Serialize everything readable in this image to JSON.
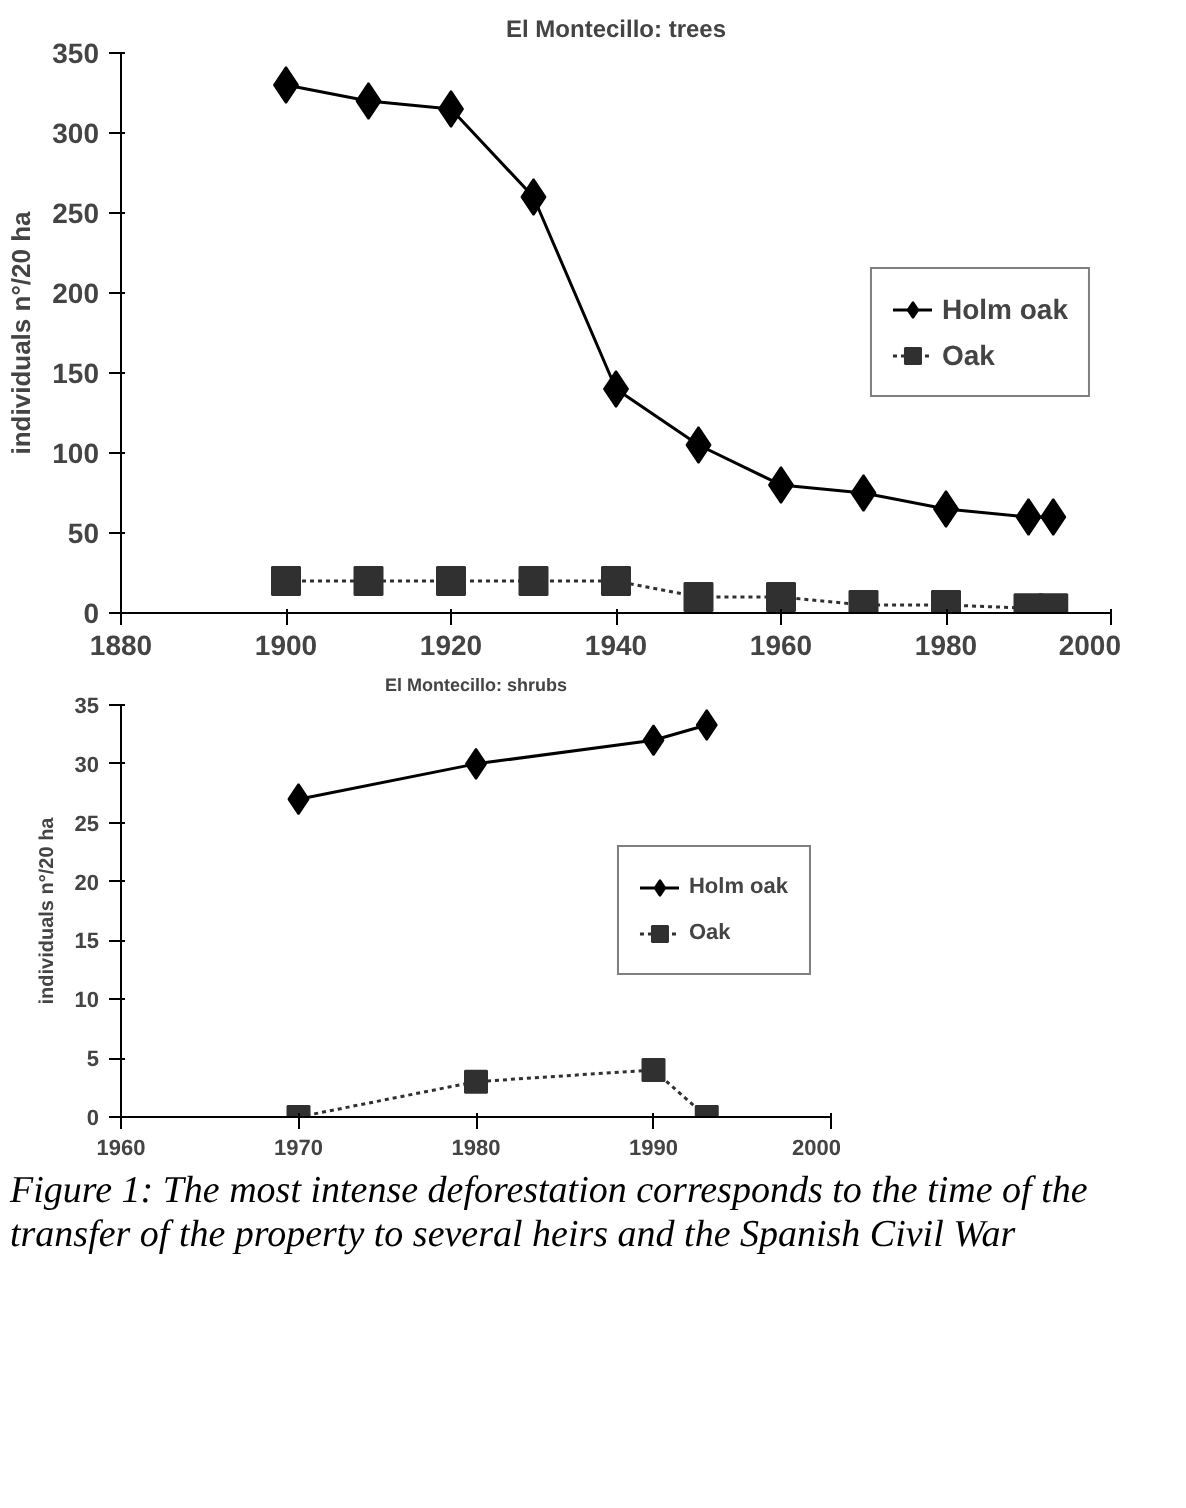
{
  "chart_data": [
    {
      "type": "line",
      "title": "El Montecillo: trees",
      "ylabel": "individuals n°/20 ha",
      "x": [
        1900,
        1910,
        1920,
        1930,
        1940,
        1950,
        1960,
        1970,
        1980,
        1990,
        1993
      ],
      "series": [
        {
          "name": "Holm oak",
          "color": "#000000",
          "marker": "diamond",
          "line_style": "solid",
          "values": [
            330,
            320,
            315,
            260,
            140,
            105,
            80,
            75,
            65,
            60,
            60
          ]
        },
        {
          "name": "Oak",
          "color": "#303030",
          "marker": "square",
          "line_style": "dotted",
          "values": [
            20,
            20,
            20,
            20,
            20,
            10,
            10,
            5,
            5,
            3,
            3
          ]
        }
      ],
      "xlim": [
        1880,
        2000
      ],
      "xticks": [
        1880,
        1900,
        1920,
        1940,
        1960,
        1980,
        2000
      ],
      "ylim": [
        0,
        350
      ],
      "yticks": [
        0,
        50,
        100,
        150,
        200,
        250,
        300,
        350
      ],
      "grid": false,
      "legend": "right"
    },
    {
      "type": "line",
      "title": "El Montecillo: shrubs",
      "ylabel": "individuals n°/20 ha",
      "x": [
        1970,
        1980,
        1990,
        1993
      ],
      "series": [
        {
          "name": "Holm oak",
          "color": "#000000",
          "marker": "diamond",
          "line_style": "solid",
          "values": [
            27,
            30,
            32,
            33.3
          ]
        },
        {
          "name": "Oak",
          "color": "#303030",
          "marker": "square",
          "line_style": "dotted",
          "values": [
            0,
            3,
            4,
            0
          ]
        }
      ],
      "xlim": [
        1960,
        2000
      ],
      "xticks": [
        1960,
        1970,
        1980,
        1990,
        2000
      ],
      "ylim": [
        0,
        35
      ],
      "yticks": [
        0,
        5,
        10,
        15,
        20,
        25,
        30,
        35
      ],
      "grid": false,
      "legend": "right",
      "annotations": [
        "Figure 1: The most intense deforestation corresponds to the time of the transfer of the property to several heirs and the Spanish Civil War"
      ]
    }
  ]
}
